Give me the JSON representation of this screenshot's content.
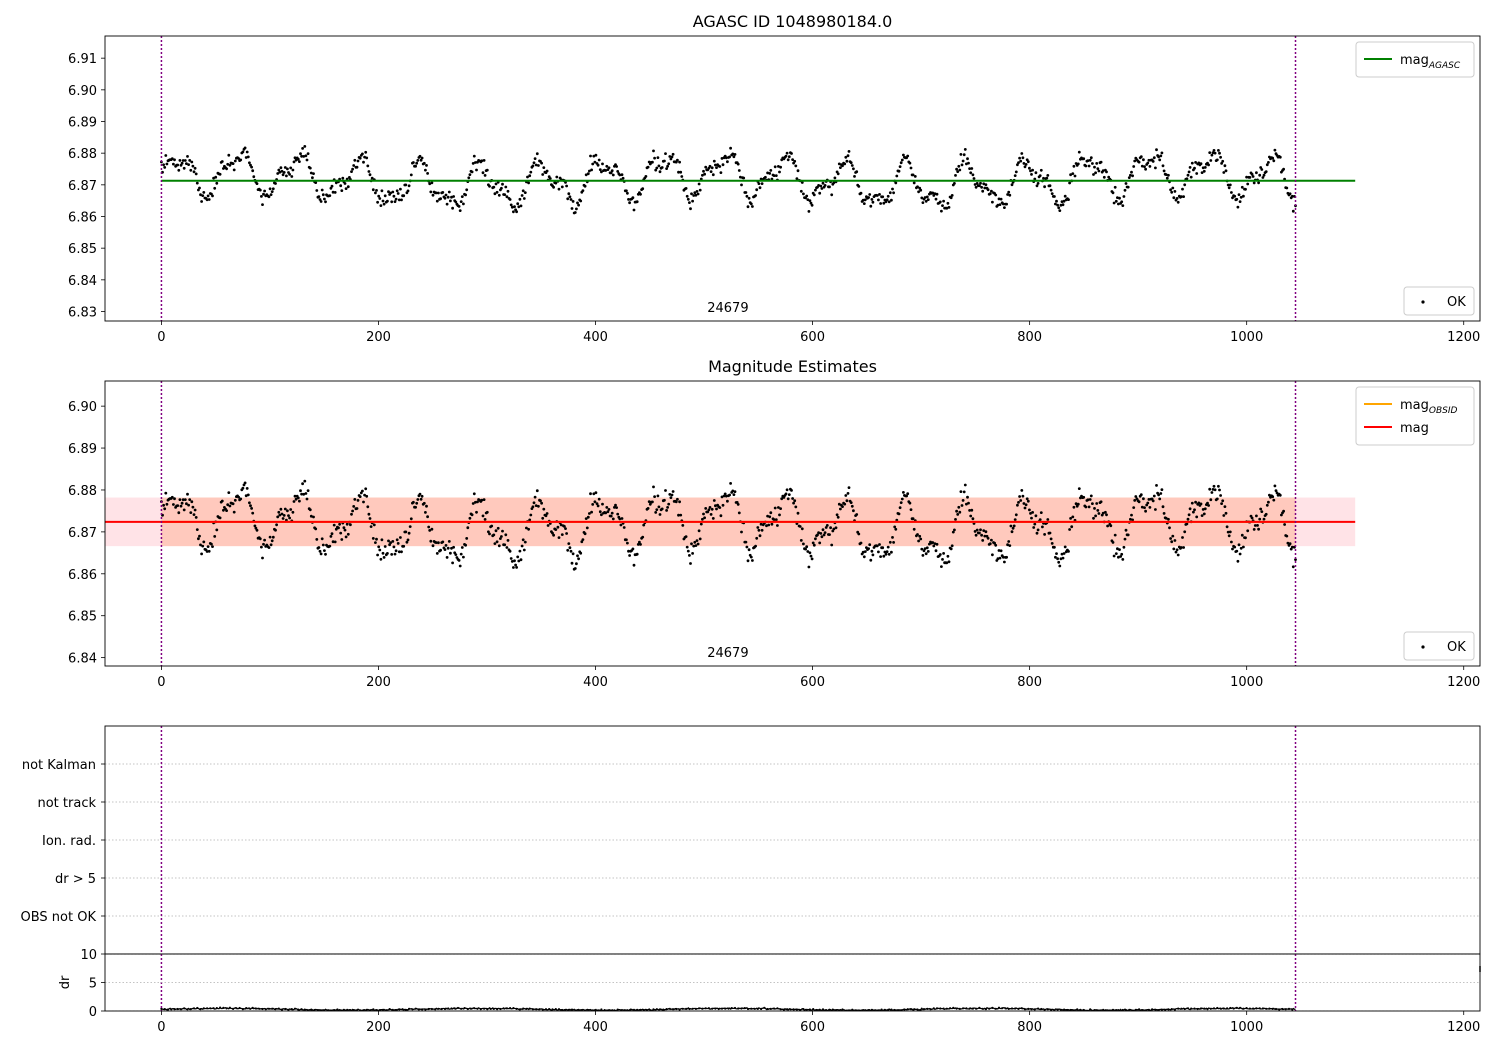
{
  "colors": {
    "agasc_line": "#008000",
    "obsid_line": "#ffa500",
    "mag_line": "#ff0000",
    "band_outer": "#ffb6c1",
    "band_inner": "#ffa07a",
    "obs_boundary": "#800080",
    "points": "#000000",
    "grid": "#b0b0b0"
  },
  "chart_data": [
    {
      "type": "scatter",
      "title": "AGASC ID 1048980184.0",
      "xlim": [
        -52,
        1215
      ],
      "ylim": [
        6.827,
        6.917
      ],
      "xticks": [
        0,
        200,
        400,
        600,
        800,
        1000,
        1200
      ],
      "yticks": [
        6.83,
        6.84,
        6.85,
        6.86,
        6.87,
        6.88,
        6.89,
        6.9,
        6.91
      ],
      "ytick_labels": [
        "6.83",
        "6.84",
        "6.85",
        "6.86",
        "6.87",
        "6.88",
        "6.89",
        "6.90",
        "6.91"
      ],
      "series": [
        {
          "name": "OK",
          "n": 1045,
          "x_start": 0,
          "x_end": 1045,
          "baseline": 6.8715,
          "amplitude": 0.0095,
          "period": 56,
          "noise": 0.0025,
          "seed": 24679
        }
      ],
      "hlines": [
        {
          "name": "mag",
          "subscript": "AGASC",
          "y": 6.8713,
          "x_range": [
            0,
            1100
          ],
          "color_key": "agasc_line"
        }
      ],
      "vlines": [
        0,
        1045
      ],
      "obsid_label": "24679",
      "obsid_label_x": 522,
      "legend_upper": [
        {
          "label": "mag",
          "subscript": "AGASC",
          "color_key": "agasc_line"
        }
      ],
      "legend_upper_loc": "upper-right",
      "legend_lower": [
        {
          "label": "OK"
        }
      ],
      "legend_lower_loc": "lower-right"
    },
    {
      "type": "scatter",
      "title": "Magnitude Estimates",
      "xlim": [
        -52,
        1215
      ],
      "ylim": [
        6.838,
        6.906
      ],
      "xticks": [
        0,
        200,
        400,
        600,
        800,
        1000,
        1200
      ],
      "yticks": [
        6.84,
        6.85,
        6.86,
        6.87,
        6.88,
        6.89,
        6.9
      ],
      "ytick_labels": [
        "6.84",
        "6.85",
        "6.86",
        "6.87",
        "6.88",
        "6.89",
        "6.90"
      ],
      "series": [
        {
          "name": "OK",
          "n": 1045,
          "x_start": 0,
          "x_end": 1045,
          "baseline": 6.8715,
          "amplitude": 0.0095,
          "period": 56,
          "noise": 0.0025,
          "seed": 24679
        }
      ],
      "hlines": [
        {
          "name": "mag",
          "subscript": "OBSID",
          "y": 6.8724,
          "x_range": [
            0,
            1045
          ],
          "color_key": "obsid_line"
        },
        {
          "name": "mag",
          "subscript": "",
          "y": 6.8724,
          "x_range": [
            -52,
            1100
          ],
          "color_key": "mag_line"
        }
      ],
      "bands": [
        {
          "y_range": [
            6.8666,
            6.8782
          ],
          "x_range": [
            -52,
            1100
          ],
          "color_key": "band_outer",
          "opacity": 0.38
        },
        {
          "y_range": [
            6.8666,
            6.8782
          ],
          "x_range": [
            0,
            1045
          ],
          "color_key": "band_inner",
          "opacity": 0.38
        }
      ],
      "vlines": [
        0,
        1045
      ],
      "obsid_label": "24679",
      "obsid_label_x": 522,
      "legend_upper": [
        {
          "label": "mag",
          "subscript": "OBSID",
          "color_key": "obsid_line"
        },
        {
          "label": "mag",
          "subscript": "",
          "color_key": "mag_line"
        }
      ],
      "legend_upper_loc": "upper-right",
      "legend_lower": [
        {
          "label": "OK"
        }
      ],
      "legend_lower_loc": "lower-right"
    },
    {
      "type": "scatter",
      "title": "",
      "xlim": [
        -52,
        1215
      ],
      "category_labels": [
        "not Kalman",
        "not track",
        "Ion. rad.",
        "dr > 5",
        "OBS not OK"
      ],
      "grid": true,
      "series": [],
      "vlines": [
        0,
        1045
      ]
    },
    {
      "type": "line",
      "title": "",
      "ylabel": "dr",
      "xlim": [
        -52,
        1215
      ],
      "ylim": [
        0,
        10
      ],
      "xticks": [
        0,
        200,
        400,
        600,
        800,
        1000,
        1200
      ],
      "yticks": [
        0,
        5,
        10
      ],
      "ytick_labels": [
        "0",
        "5",
        "10"
      ],
      "series": [
        {
          "name": "dr",
          "n": 1045,
          "x_start": 0,
          "x_end": 1045,
          "baseline": 0.3,
          "amplitude": 0.15,
          "noise": 0.12,
          "seed": 911
        }
      ],
      "vlines": [
        0,
        1045
      ]
    }
  ]
}
